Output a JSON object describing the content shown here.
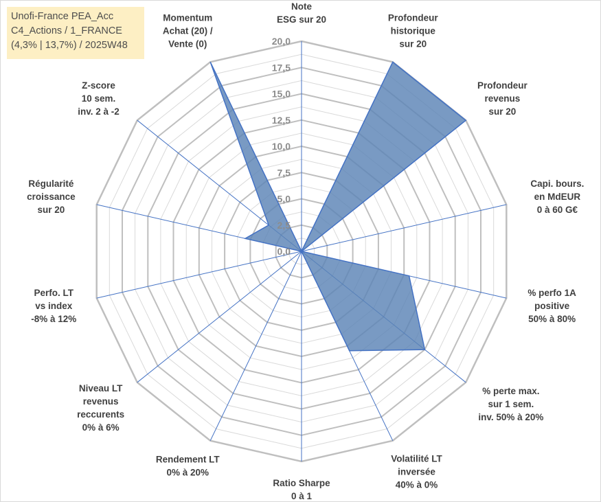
{
  "title_lines": [
    "Unofi-France PEA_Acc",
    "C4_Actions / 1_FRANCE",
    "(4,3% | 13,7%) / 2025W48"
  ],
  "colors": {
    "series_fill": "#5b84b6",
    "series_stroke": "#4472c4",
    "gridline": "#bfbfbf",
    "minor_gridline": "#d9d9d9",
    "spoke": "#4472c4",
    "title_bg": "#fdefc4"
  },
  "chart_data": {
    "type": "radar",
    "scale_min": 0,
    "scale_max": 20,
    "ticks": [
      "0,0",
      "2,5",
      "5,0",
      "7,5",
      "10,0",
      "12,5",
      "15,0",
      "17,5",
      "20,0"
    ],
    "tick_values": [
      0,
      2.5,
      5,
      7.5,
      10,
      12.5,
      15,
      17.5,
      20
    ],
    "axes": [
      {
        "label": [
          "Note",
          "ESG sur 20"
        ],
        "value": 0
      },
      {
        "label": [
          "Profondeur",
          "historique",
          "sur 20"
        ],
        "value": 20
      },
      {
        "label": [
          "Profondeur",
          "revenus",
          "sur 20"
        ],
        "value": 20
      },
      {
        "label": [
          "Capi. bours.",
          "en MdEUR",
          "0 à 60 G€"
        ],
        "value": 0
      },
      {
        "label": [
          "% perfo 1A",
          "positive",
          "50% à 80%"
        ],
        "value": 10.5
      },
      {
        "label": [
          "% perte max.",
          "sur 1 sem.",
          "inv. 50% à 20%"
        ],
        "value": 15
      },
      {
        "label": [
          "Volatilité LT",
          "inversée",
          "40% à 0%"
        ],
        "value": 10.5
      },
      {
        "label": [
          "Ratio Sharpe",
          "0 à 1"
        ],
        "value": 0
      },
      {
        "label": [
          "Rendement LT",
          "0% à 20%"
        ],
        "value": 0
      },
      {
        "label": [
          "Niveau LT",
          "revenus",
          "reccurents",
          "0% à 6%"
        ],
        "value": 0
      },
      {
        "label": [
          "Perfo. LT",
          "vs index",
          "-8% à 12%"
        ],
        "value": 0
      },
      {
        "label": [
          "Régularité",
          "croissance",
          "sur 20"
        ],
        "value": 5.5
      },
      {
        "label": [
          "Z-score",
          "10 sem.",
          "inv. 2 à -2"
        ],
        "value": 4
      },
      {
        "label": [
          "Momentum",
          "Achat (20) /",
          "Vente (0)"
        ],
        "value": 20
      }
    ]
  }
}
